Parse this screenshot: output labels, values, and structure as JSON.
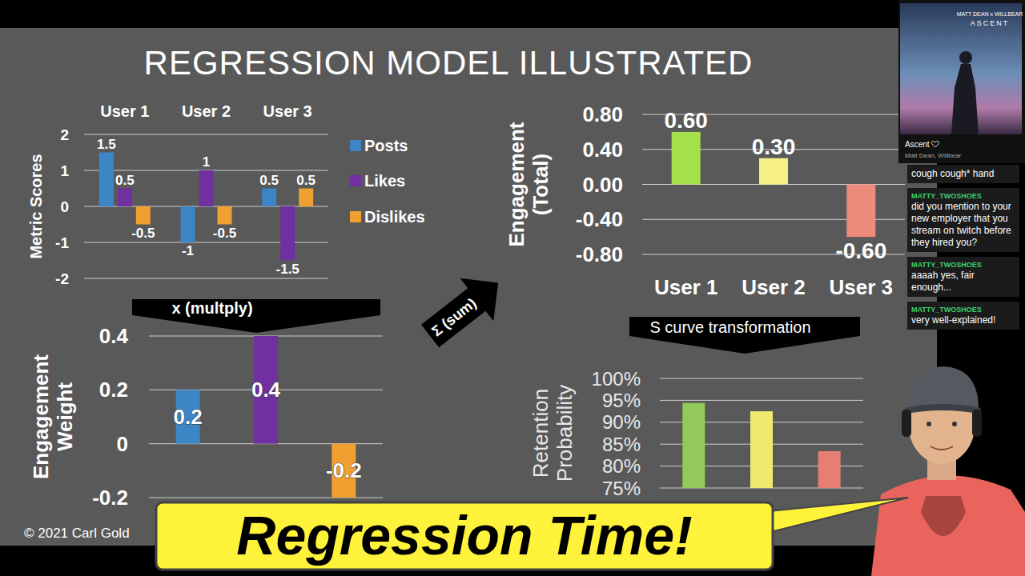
{
  "slide": {
    "title": "REGRESSION MODEL ILLUSTRATED",
    "copyright": "© 2021 Carl Gold",
    "multiply_label": "x (multply)",
    "sum_label": "Σ (sum)",
    "transform_label": "S curve transformation"
  },
  "chart_data": [
    {
      "type": "bar",
      "ylabel": "Metric Scores",
      "categories": [
        "User 1",
        "User 2",
        "User 3"
      ],
      "series": [
        {
          "name": "Posts",
          "color": "#3d86c6",
          "values": [
            1.5,
            -1,
            0.5
          ]
        },
        {
          "name": "Likes",
          "color": "#7030a0",
          "values": [
            0.5,
            1,
            -1.5
          ]
        },
        {
          "name": "Dislikes",
          "color": "#f0a030",
          "values": [
            -0.5,
            -0.5,
            0.5
          ]
        }
      ],
      "ylim": [
        -2,
        2
      ],
      "yticks": [
        -2,
        -1,
        0,
        1,
        2
      ],
      "grid": true,
      "legend": "right",
      "data_labels": true
    },
    {
      "type": "bar",
      "ylabel": "Engagement Weight",
      "categories": [
        null,
        null,
        null
      ],
      "values": [
        0.2,
        0.4,
        -0.2
      ],
      "colors": [
        "#3d86c6",
        "#7030a0",
        "#f0a030"
      ],
      "ylim": [
        -0.2,
        0.4
      ],
      "yticks": [
        -0.2,
        0,
        0.2,
        0.4
      ],
      "grid": true,
      "data_labels": true
    },
    {
      "type": "bar",
      "ylabel": "Engagement (Total)",
      "categories": [
        "User 1",
        "User 2",
        "User 3"
      ],
      "values": [
        0.6,
        0.3,
        -0.6
      ],
      "value_labels": [
        "0.60",
        "0.30",
        "-0.60"
      ],
      "colors": [
        "#a6e04a",
        "#f5ef86",
        "#ee8a7c"
      ],
      "ylim": [
        -0.8,
        0.8
      ],
      "yticks": [
        {
          "value": -0.8,
          "label": "-0.80"
        },
        {
          "value": -0.4,
          "label": "-0.40"
        },
        {
          "value": 0,
          "label": "0.00"
        },
        {
          "value": 0.4,
          "label": "0.40"
        },
        {
          "value": 0.8,
          "label": "0.80"
        }
      ],
      "grid": true,
      "data_labels": true
    },
    {
      "type": "bar",
      "ylabel": "Retention Probability",
      "categories": [
        null,
        null,
        null
      ],
      "values": [
        94.4,
        92.5,
        83.4
      ],
      "colors": [
        "#93c95a",
        "#eeea6e",
        "#e67f73"
      ],
      "ylim": [
        75,
        100
      ],
      "yticks": [
        {
          "value": 75,
          "label": "75%"
        },
        {
          "value": 80,
          "label": "80%"
        },
        {
          "value": 85,
          "label": "85%"
        },
        {
          "value": 90,
          "label": "90%"
        },
        {
          "value": 95,
          "label": "95%"
        },
        {
          "value": 100,
          "label": "100%"
        }
      ],
      "grid": true,
      "data_labels": false
    }
  ],
  "banner": {
    "text": "Regression Time!"
  },
  "now_playing": {
    "art_artists": "MATT DEAN x WILLBEAR",
    "art_title": "ASCENT",
    "track": "Ascent",
    "artists": "Matt Dean, Willbear"
  },
  "chat": {
    "messages": [
      {
        "text": "cough cough* hand"
      },
      {
        "user": "MATTY_TWOSHOES",
        "text": "did you mention to your new employer that you stream on twitch before they hired you?"
      },
      {
        "user": "MATTY_TWOSHOES",
        "text": "aaaah yes, fair enough..."
      },
      {
        "user": "MATTY_TWOSHOES",
        "text": "very well-explained!"
      }
    ]
  }
}
